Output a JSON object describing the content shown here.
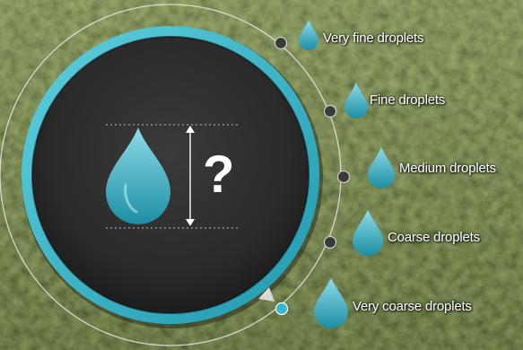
{
  "center_symbol": "?",
  "droplet_options": [
    {
      "label": "Very fine droplets",
      "selected": false
    },
    {
      "label": "Fine droplets",
      "selected": false
    },
    {
      "label": "Medium droplets",
      "selected": false
    },
    {
      "label": "Coarse droplets",
      "selected": false
    },
    {
      "label": "Very coarse droplets",
      "selected": true
    }
  ],
  "colors": {
    "accent": "#38b6cc",
    "drop_light": "#8fdbe8",
    "drop_dark": "#1c8ea3",
    "dial_dark": "#2b2b2b",
    "background_crop": "#4c5a2f"
  },
  "icons": [
    "droplet-icon",
    "size-arrow-icon",
    "selector-knob-icon"
  ]
}
